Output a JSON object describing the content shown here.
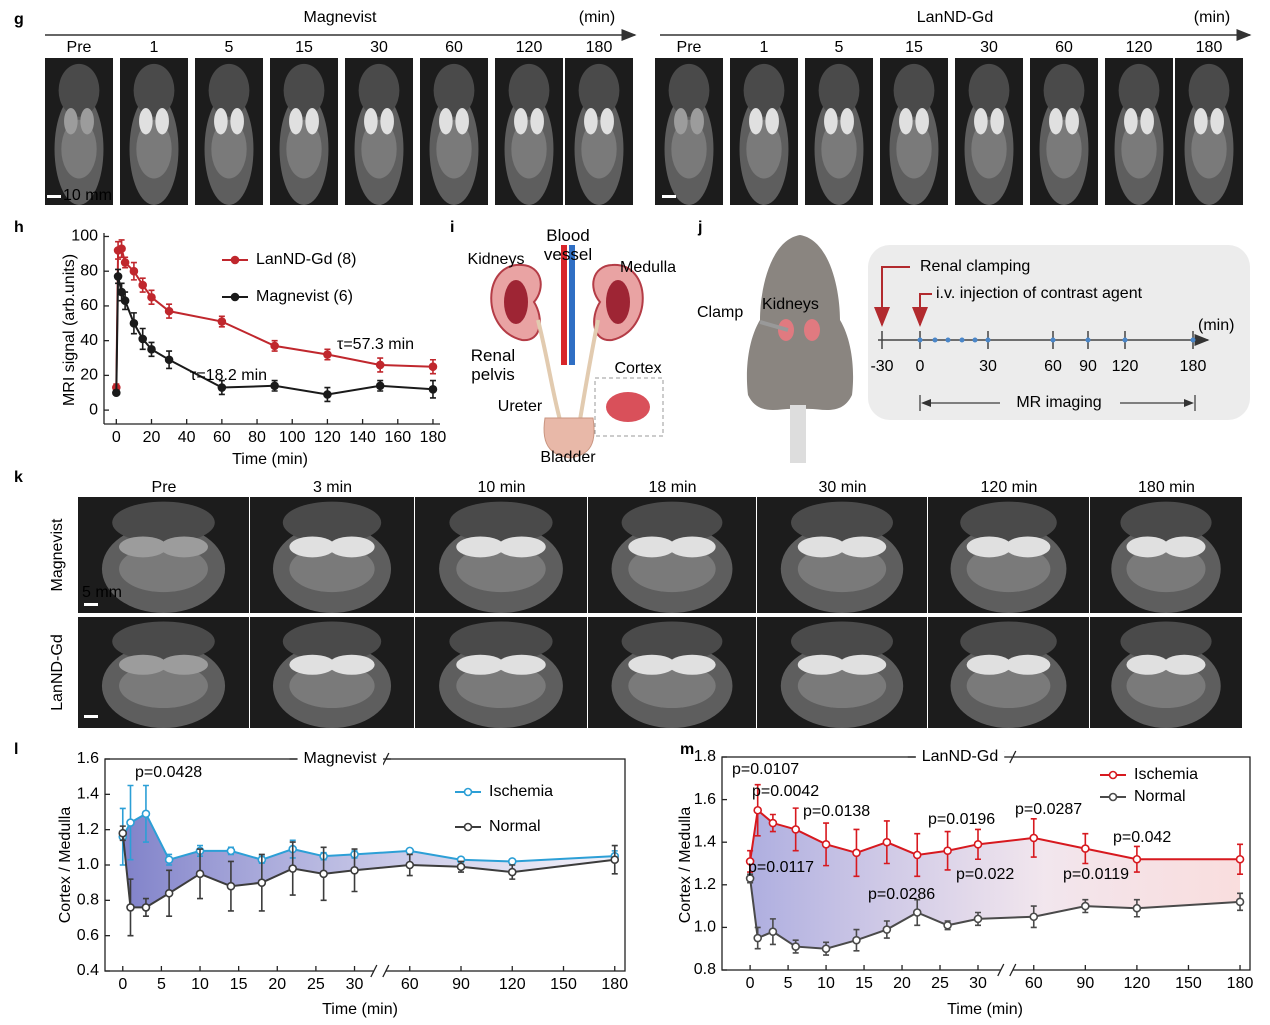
{
  "panel_labels": [
    "g",
    "h",
    "i",
    "j",
    "k",
    "l",
    "m"
  ],
  "panel_g": {
    "rows": [
      {
        "title": "Magnevist",
        "color": "#000000",
        "unit": "(min)",
        "times": [
          "Pre",
          1,
          5,
          15,
          30,
          60,
          120,
          180
        ],
        "scale": "10 mm"
      },
      {
        "title": "LanND-Gd",
        "color": "#b22a2e",
        "unit": "(min)",
        "times": [
          "Pre",
          1,
          5,
          15,
          30,
          60,
          120,
          180
        ]
      }
    ]
  },
  "panel_i": {
    "kidneys": "Kidneys",
    "blood_vessel": "Blood vessel",
    "medulla": "Medulla",
    "renal_pelvis": "Renal pelvis",
    "cortex": "Cortex",
    "ureter": "Ureter",
    "bladder": "Bladder"
  },
  "panel_j": {
    "clamp": "Clamp",
    "kidneys": "Kidneys",
    "renal_clamping": "Renal clamping",
    "injection": "i.v. injection of contrast agent",
    "unit": "(min)",
    "timeline": [
      -30,
      0,
      30,
      60,
      90,
      120,
      180
    ],
    "mr_imaging": "MR imaging"
  },
  "panel_k": {
    "times": [
      "Pre",
      "3 min",
      "10 min",
      "18 min",
      "30 min",
      "120 min",
      "180 min"
    ],
    "rows": [
      {
        "name": "Magnevist",
        "color": "#000000"
      },
      {
        "name": "LanND-Gd",
        "color": "#b22a2e"
      }
    ],
    "scale": "5 mm"
  },
  "chart_data": [
    {
      "type": "line",
      "x_label": "Time (min)",
      "y_label": "MRI signal (arb.units)",
      "xlim": [
        -7,
        184
      ],
      "xticks": [
        0,
        20,
        40,
        60,
        80,
        100,
        120,
        140,
        160,
        180
      ],
      "ylim": [
        -8,
        102
      ],
      "yticks": [
        0,
        20,
        40,
        60,
        80,
        100
      ],
      "annotations": [
        {
          "text": "τ=57.3 min",
          "color": "#c0272d"
        },
        {
          "text": "τ=18.2 min",
          "color": "#000000"
        }
      ],
      "series": [
        {
          "name": "LanND-Gd (8)",
          "color": "#c0272d",
          "x": [
            0,
            1,
            3,
            5,
            10,
            15,
            20,
            30,
            60,
            90,
            120,
            150,
            180
          ],
          "values": [
            13,
            92,
            93,
            85,
            80,
            72,
            65,
            57,
            51,
            37,
            32,
            26,
            25
          ],
          "errors": [
            2,
            5,
            5,
            3,
            5,
            4,
            4,
            4,
            3,
            3,
            3,
            4,
            4
          ]
        },
        {
          "name": "Magnevist (6)",
          "color": "#1a1a1a",
          "x": [
            0,
            1,
            3,
            5,
            10,
            15,
            20,
            30,
            60,
            90,
            120,
            150,
            180
          ],
          "values": [
            10,
            77,
            68,
            63,
            50,
            41,
            35,
            29,
            13,
            14,
            9,
            14,
            12
          ],
          "errors": [
            1,
            4,
            5,
            5,
            6,
            6,
            4,
            5,
            4,
            3,
            4,
            3,
            5
          ]
        }
      ]
    },
    {
      "type": "line",
      "title": "Magnevist",
      "title_color": "#000000",
      "x_label": "Time (min)",
      "y_label": "Cortex / Medulla",
      "xsegments": [
        {
          "xlim": [
            -2.3,
            32.5
          ],
          "xticks": [
            0,
            5,
            10,
            15,
            20,
            25,
            30
          ]
        },
        {
          "xlim": [
            46,
            186
          ],
          "xticks": [
            60,
            90,
            120,
            150,
            180
          ]
        }
      ],
      "ylim": [
        0.4,
        1.6
      ],
      "yticks": [
        0.4,
        0.6,
        0.8,
        {
          "value": 1,
          "label": "1.0"
        },
        1.2,
        1.4,
        1.6
      ],
      "annotations": [
        {
          "text": "p=0.0428"
        }
      ],
      "series": [
        {
          "name": "Ischemia",
          "color": "#2c9fd6",
          "x": [
            0,
            1,
            3,
            6,
            10,
            14,
            18,
            22,
            26,
            30,
            60,
            90,
            120,
            180
          ],
          "values": [
            1.16,
            1.24,
            1.29,
            1.03,
            1.08,
            1.08,
            1.03,
            1.09,
            1.05,
            1.06,
            1.08,
            1.03,
            1.02,
            1.05
          ],
          "errors": [
            0.16,
            0.21,
            0.16,
            0.03,
            0.03,
            0.02,
            0.02,
            0.05,
            0.02,
            0.02,
            0.01,
            0.01,
            0.01,
            0.03
          ]
        },
        {
          "name": "Normal",
          "color": "#3c3c3c",
          "x": [
            0,
            1,
            3,
            6,
            10,
            14,
            18,
            22,
            26,
            30,
            60,
            90,
            120,
            180
          ],
          "values": [
            1.18,
            0.76,
            0.76,
            0.84,
            0.95,
            0.88,
            0.9,
            0.98,
            0.95,
            0.97,
            1.0,
            0.99,
            0.96,
            1.03
          ],
          "errors": [
            0.04,
            0.16,
            0.05,
            0.13,
            0.14,
            0.14,
            0.16,
            0.15,
            0.15,
            0.12,
            0.06,
            0.03,
            0.04,
            0.08
          ]
        }
      ]
    },
    {
      "type": "line",
      "title": "LanND-Gd",
      "title_color": "#c0272d",
      "x_label": "Time (min)",
      "y_label": "Cortex / Medulla",
      "xsegments": [
        {
          "xlim": [
            -3.7,
            33
          ],
          "xticks": [
            0,
            5,
            10,
            15,
            20,
            25,
            30
          ]
        },
        {
          "xlim": [
            47.8,
            185.8
          ],
          "xticks": [
            60,
            90,
            120,
            150,
            180
          ]
        }
      ],
      "ylim": [
        0.8,
        1.8
      ],
      "yticks": [
        0.8,
        {
          "value": 1,
          "label": "1.0"
        },
        1.2,
        1.4,
        1.6,
        1.8
      ],
      "annotations": [
        {
          "text": "p=0.0107"
        },
        {
          "text": "p=0.0042"
        },
        {
          "text": "p=0.0138"
        },
        {
          "text": "p=0.0117"
        },
        {
          "text": "p=0.0196"
        },
        {
          "text": "p=0.022"
        },
        {
          "text": "p=0.0286"
        },
        {
          "text": "p=0.0287"
        },
        {
          "text": "p=0.0119"
        },
        {
          "text": "p=0.042"
        }
      ],
      "series": [
        {
          "name": "Ischemia",
          "color": "#d7191f",
          "x": [
            0,
            1,
            3,
            6,
            10,
            14,
            18,
            22,
            26,
            30,
            60,
            90,
            120,
            180
          ],
          "values": [
            1.31,
            1.55,
            1.49,
            1.46,
            1.39,
            1.35,
            1.4,
            1.34,
            1.36,
            1.39,
            1.42,
            1.37,
            1.32,
            1.32
          ],
          "errors": [
            0.05,
            0.12,
            0.04,
            0.1,
            0.1,
            0.11,
            0.1,
            0.1,
            0.09,
            0.07,
            0.09,
            0.07,
            0.06,
            0.07
          ]
        },
        {
          "name": "Normal",
          "color": "#4a4a4a",
          "x": [
            0,
            1,
            3,
            6,
            10,
            14,
            18,
            22,
            26,
            30,
            60,
            90,
            120,
            180
          ],
          "values": [
            1.23,
            0.95,
            0.98,
            0.91,
            0.9,
            0.94,
            0.99,
            1.07,
            1.01,
            1.04,
            1.05,
            1.1,
            1.09,
            1.12
          ],
          "errors": [
            0.02,
            0.05,
            0.06,
            0.03,
            0.03,
            0.05,
            0.04,
            0.06,
            0.02,
            0.03,
            0.05,
            0.03,
            0.04,
            0.04
          ]
        }
      ]
    }
  ]
}
